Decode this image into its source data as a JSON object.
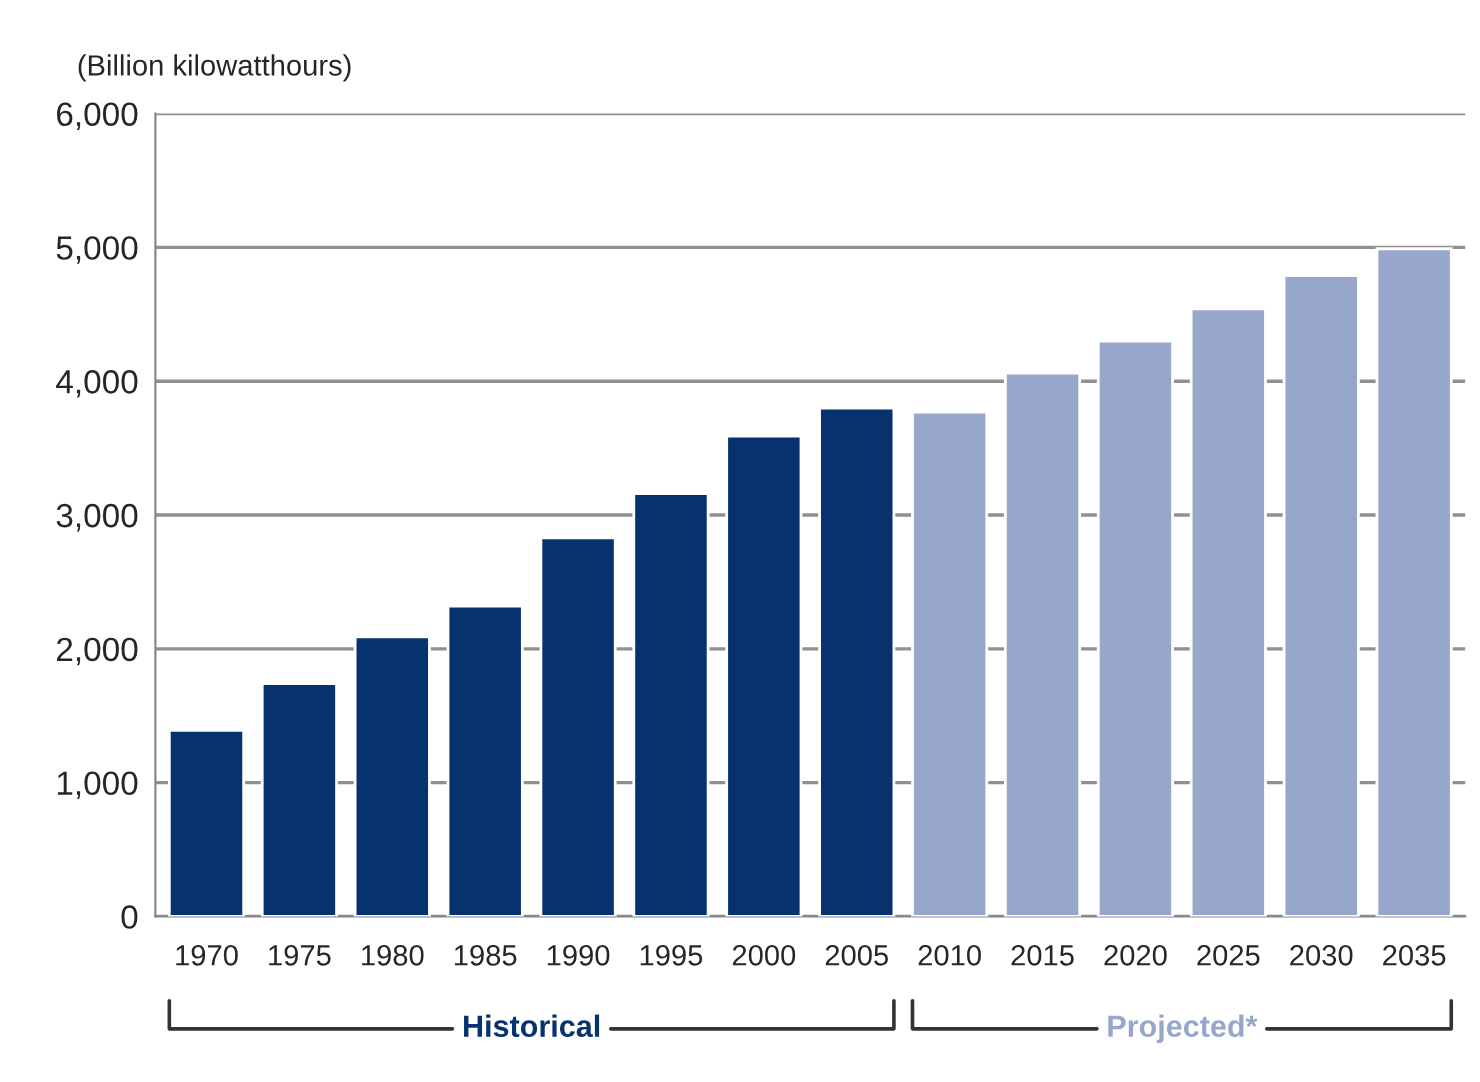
{
  "chart_data": {
    "type": "bar",
    "ylabel": "(Billion kilowatthours)",
    "categories": [
      "1970",
      "1975",
      "1980",
      "1985",
      "1990",
      "1995",
      "2000",
      "2005",
      "2010",
      "2015",
      "2020",
      "2025",
      "2030",
      "2035"
    ],
    "series": [
      {
        "name": "Historical",
        "color": "#06326e",
        "values": [
          1390,
          1740,
          2090,
          2320,
          2830,
          3160,
          3590,
          3800,
          null,
          null,
          null,
          null,
          null,
          null
        ]
      },
      {
        "name": "Projected*",
        "color": "#97a7cc",
        "values": [
          null,
          null,
          null,
          null,
          null,
          null,
          null,
          null,
          3770,
          4060,
          4300,
          4540,
          4790,
          4990
        ]
      }
    ],
    "ylim": [
      0,
      6000
    ],
    "yticks": [
      {
        "value": 0,
        "label": "0"
      },
      {
        "value": 1000,
        "label": "1,000"
      },
      {
        "value": 2000,
        "label": "2,000"
      },
      {
        "value": 3000,
        "label": "3,000"
      },
      {
        "value": 4000,
        "label": "4,000"
      },
      {
        "value": 5000,
        "label": "5,000"
      },
      {
        "value": 6000,
        "label": "6,000"
      }
    ],
    "grid": "y"
  }
}
